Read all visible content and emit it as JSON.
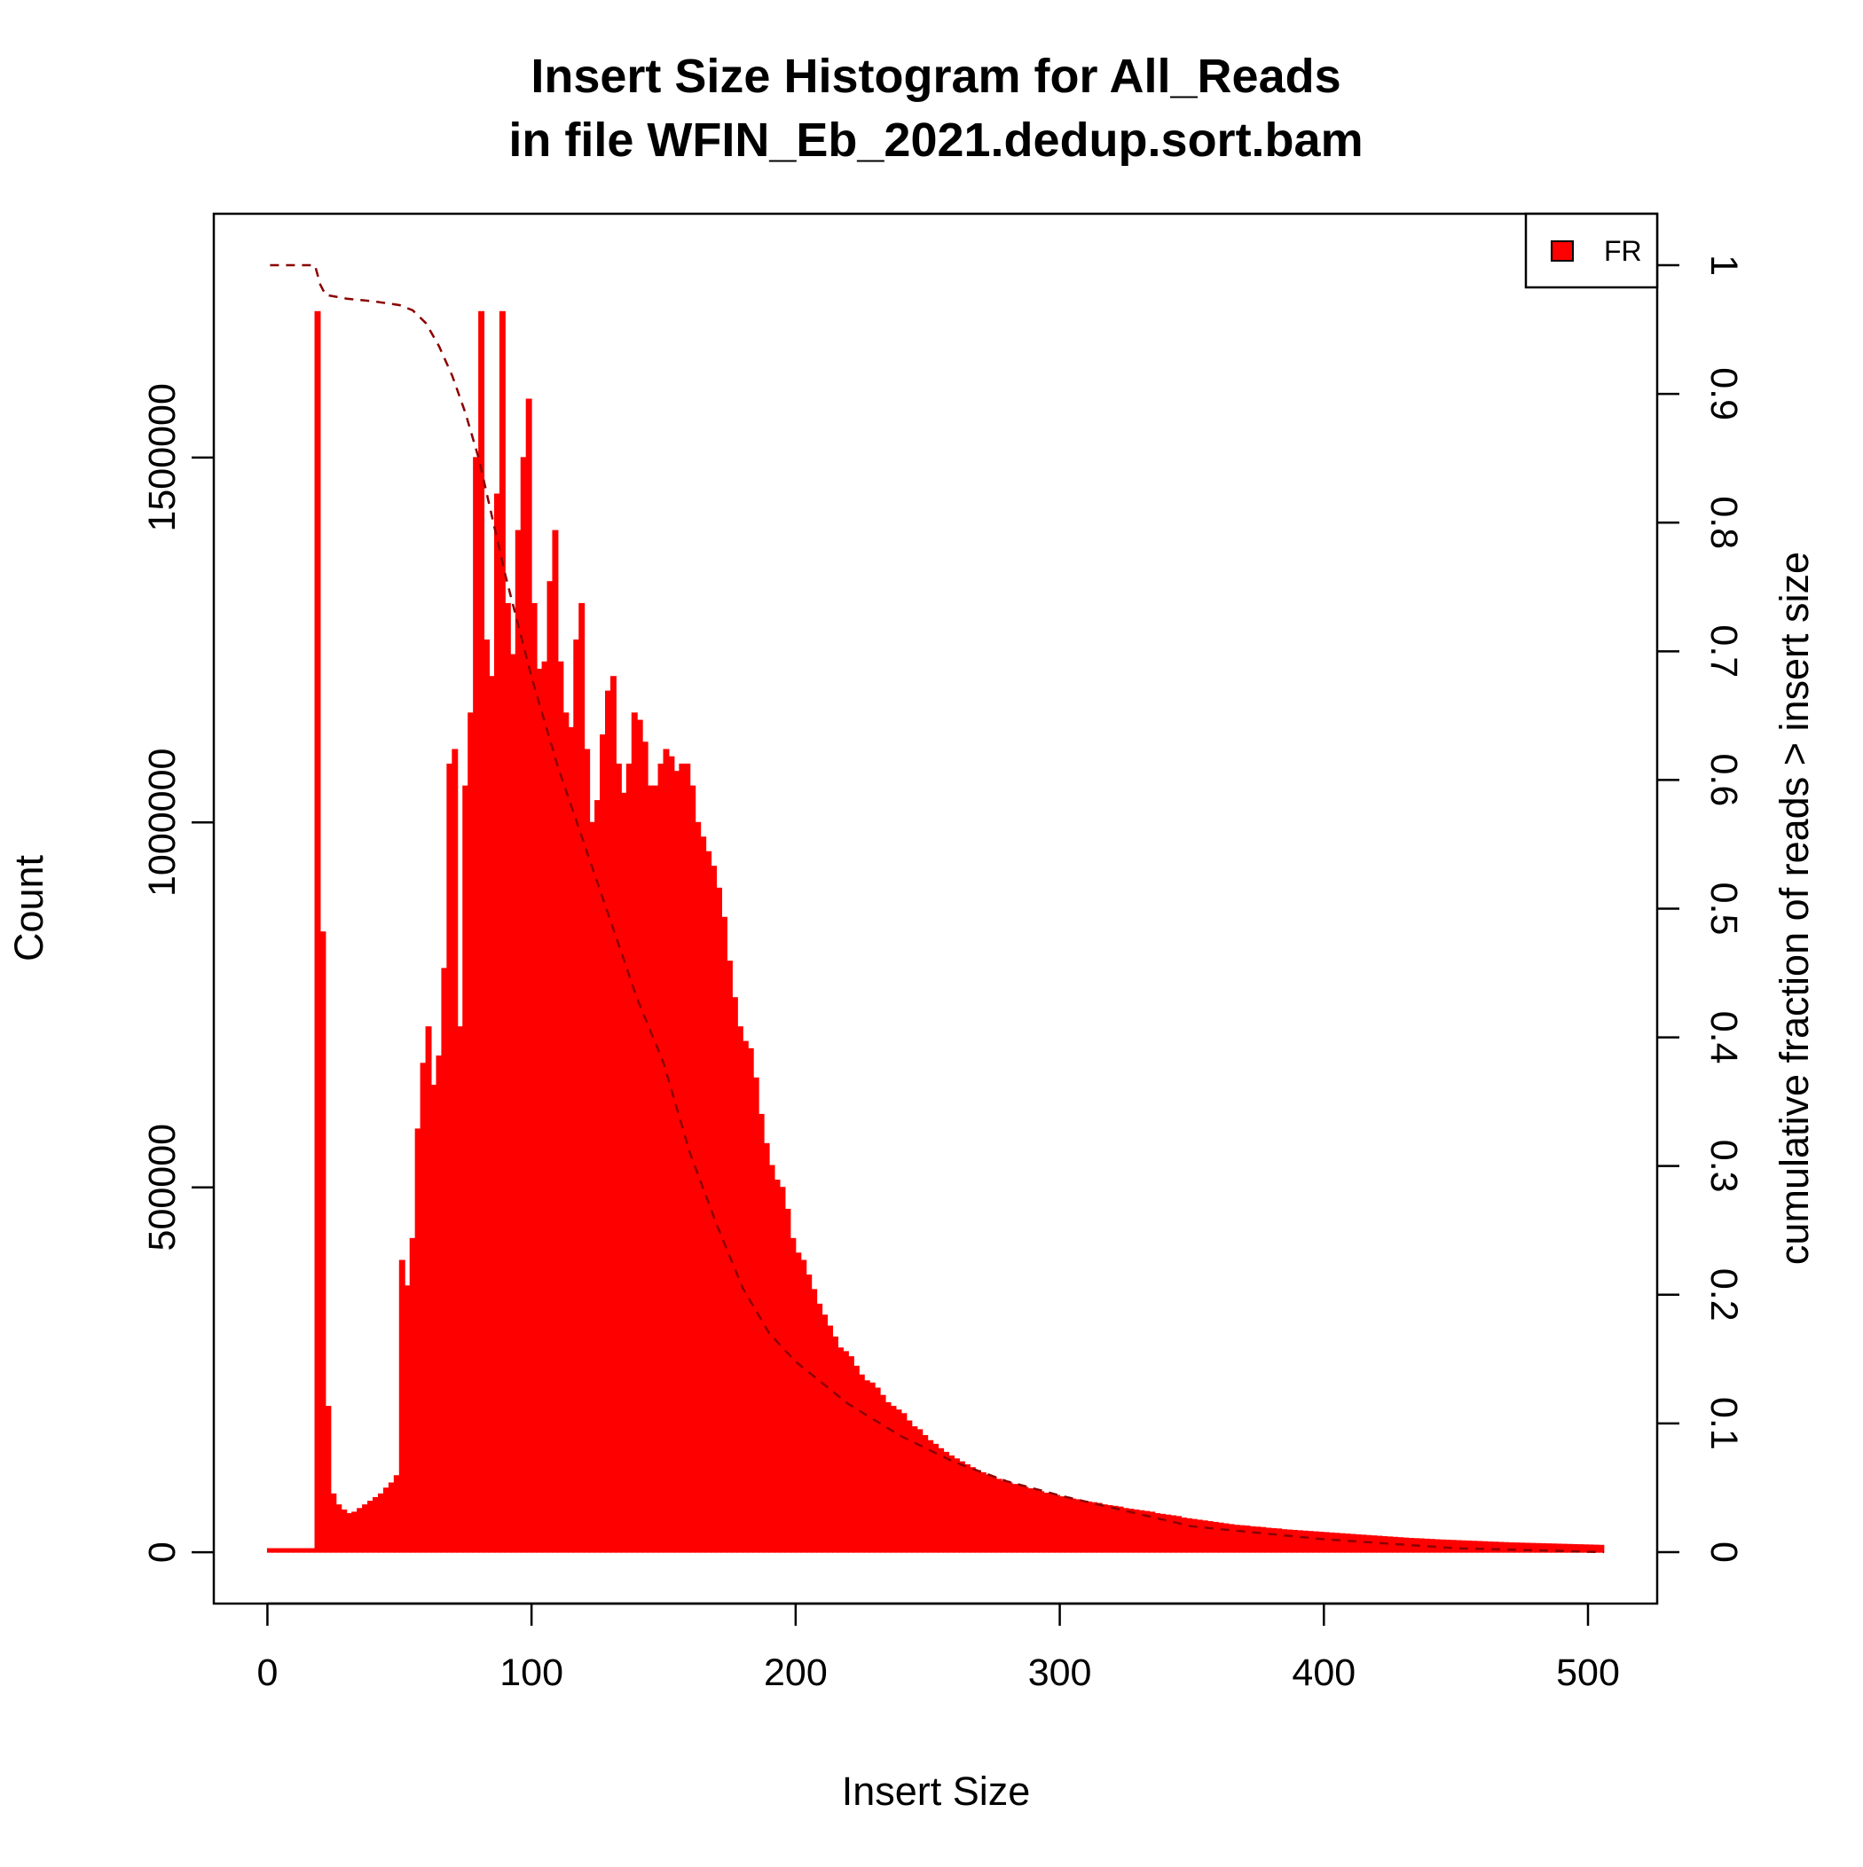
{
  "chart_data": {
    "type": "histogram",
    "title": [
      "Insert Size Histogram for All_Reads",
      "in file WFIN_Eb_2021.dedup.sort.bam"
    ],
    "xlabel": "Insert Size",
    "ylabel": "Count",
    "y2label": "cumulative fraction of reads > insert size",
    "bins": [
      0,
      2,
      4,
      6,
      8,
      10,
      12,
      14,
      16,
      18,
      20,
      22,
      24,
      26,
      28,
      30,
      32,
      34,
      36,
      38,
      40,
      42,
      44,
      46,
      48,
      50,
      52,
      54,
      56,
      58,
      60,
      62,
      64,
      66,
      68,
      70,
      72,
      74,
      76,
      78,
      80,
      82,
      84,
      86,
      88,
      90,
      92,
      94,
      96,
      98,
      100,
      102,
      104,
      106,
      108,
      110,
      112,
      114,
      116,
      118,
      120,
      122,
      124,
      126,
      128,
      130,
      132,
      134,
      136,
      138,
      140,
      142,
      144,
      146,
      148,
      150,
      152,
      154,
      156,
      158,
      160,
      162,
      164,
      166,
      168,
      170,
      172,
      174,
      176,
      178,
      180,
      182,
      184,
      186,
      188,
      190,
      192,
      194,
      196,
      198,
      200,
      202,
      204,
      206,
      208,
      210,
      212,
      214,
      216,
      218,
      220,
      222,
      224,
      226,
      228,
      230,
      232,
      234,
      236,
      238,
      240,
      242,
      244,
      246,
      248,
      250,
      252,
      254,
      256,
      258,
      260,
      262,
      264,
      266,
      268,
      270,
      272,
      274,
      276,
      278,
      280,
      282,
      284,
      286,
      288,
      290,
      292,
      294,
      296,
      298,
      300,
      302,
      304,
      306,
      308,
      310,
      312,
      314,
      316,
      318,
      320,
      322,
      324,
      326,
      328,
      330,
      332,
      334,
      336,
      338,
      340,
      342,
      344,
      346,
      348,
      350,
      352,
      354,
      356,
      358,
      360,
      362,
      364,
      366,
      368,
      370,
      372,
      374,
      376,
      378,
      380,
      382,
      384,
      386,
      388,
      390,
      392,
      394,
      396,
      398,
      400,
      402,
      404,
      406,
      408,
      410,
      412,
      414,
      416,
      418,
      420,
      422,
      424,
      426,
      428,
      430,
      432,
      434,
      436,
      438,
      440,
      442,
      444,
      446,
      448,
      450,
      452,
      454,
      456,
      458,
      460,
      462,
      464,
      466,
      468,
      470,
      472,
      474,
      476,
      478,
      480,
      482,
      484,
      486,
      488,
      490,
      492,
      494,
      496,
      498,
      500,
      502,
      504,
      506
    ],
    "series": [
      {
        "name": "FR",
        "color": "#ff0000",
        "values": [
          5000,
          5000,
          5000,
          5000,
          5000,
          5000,
          5000,
          5000,
          5000,
          1700000,
          850000,
          200000,
          80000,
          65000,
          58000,
          53000,
          55000,
          60000,
          65000,
          70000,
          75000,
          80000,
          88000,
          95000,
          105000,
          400000,
          365000,
          430000,
          580000,
          670000,
          720000,
          640000,
          680000,
          800000,
          1080000,
          1100000,
          720000,
          1050000,
          1150000,
          1500000,
          1700000,
          1250000,
          1200000,
          1450000,
          1700000,
          1300000,
          1230000,
          1400000,
          1500000,
          1580000,
          1300000,
          1210000,
          1220000,
          1330000,
          1400000,
          1220000,
          1150000,
          1130000,
          1250000,
          1300000,
          1100000,
          1000000,
          1030000,
          1120000,
          1180000,
          1200000,
          1080000,
          1040000,
          1080000,
          1150000,
          1140000,
          1110000,
          1050000,
          1050000,
          1080000,
          1100000,
          1090000,
          1070000,
          1080000,
          1080000,
          1050000,
          1000000,
          980000,
          960000,
          940000,
          910000,
          870000,
          810000,
          760000,
          720000,
          700000,
          690000,
          650000,
          600000,
          560000,
          530000,
          510000,
          500000,
          470000,
          430000,
          410000,
          400000,
          380000,
          360000,
          340000,
          325000,
          310000,
          295000,
          280000,
          275000,
          268000,
          255000,
          243000,
          235000,
          232000,
          225000,
          215000,
          205000,
          200000,
          195000,
          190000,
          180000,
          172000,
          168000,
          160000,
          153000,
          148000,
          142000,
          137000,
          132000,
          128000,
          124000,
          120000,
          116000,
          112000,
          109000,
          106000,
          103000,
          100000,
          97000,
          95000,
          93000,
          91000,
          89000,
          87000,
          85000,
          83000,
          81000,
          80000,
          78000,
          76000,
          74000,
          73000,
          72000,
          70000,
          69000,
          68000,
          67000,
          65000,
          64000,
          63000,
          62000,
          60000,
          59000,
          58000,
          57000,
          56000,
          55000,
          53000,
          52000,
          51000,
          50000,
          49000,
          47000,
          46000,
          45000,
          44000,
          43000,
          42000,
          41000,
          40000,
          39000,
          38000,
          37000,
          36500,
          36000,
          35000,
          34500,
          34000,
          33000,
          32500,
          32000,
          31000,
          30500,
          30000,
          29500,
          29000,
          28500,
          28000,
          27500,
          27000,
          26500,
          26000,
          25500,
          25000,
          24500,
          24000,
          23500,
          23000,
          22500,
          22000,
          21500,
          21000,
          20500,
          20000,
          19500,
          19000,
          18700,
          18400,
          18000,
          17600,
          17200,
          16900,
          16600,
          16300,
          16000,
          15700,
          15400,
          15100,
          14800,
          14500,
          14200,
          13900,
          13600,
          13300,
          13000,
          12800,
          12600,
          12400,
          12200,
          12000,
          11800,
          11600,
          11400,
          11200,
          11000,
          10800,
          10600,
          10400,
          10200,
          10000,
          9800,
          9600
        ]
      },
      {
        "type": "line",
        "axis": "y2",
        "color": "#8b0000",
        "dashed": true,
        "x": [
          1,
          18,
          20,
          22,
          30,
          40,
          50,
          55,
          60,
          65,
          70,
          75,
          80,
          85,
          90,
          100,
          110,
          120,
          130,
          140,
          150,
          160,
          170,
          180,
          190,
          200,
          220,
          240,
          260,
          280,
          300,
          350,
          400,
          450,
          506
        ],
        "values": [
          1,
          1,
          0.985,
          0.977,
          0.974,
          0.972,
          0.969,
          0.965,
          0.955,
          0.937,
          0.914,
          0.885,
          0.85,
          0.805,
          0.76,
          0.68,
          0.61,
          0.55,
          0.49,
          0.43,
          0.38,
          0.31,
          0.255,
          0.205,
          0.17,
          0.148,
          0.115,
          0.09,
          0.07,
          0.055,
          0.044,
          0.02,
          0.01,
          0.003,
          0
        ]
      }
    ],
    "xlim": [
      -20.3,
      526.2
    ],
    "ylim": [
      -70300,
      1834000
    ],
    "y2lim": [
      -0.04,
      1.04
    ],
    "xticks": [
      0,
      100,
      200,
      300,
      400,
      500
    ],
    "yticks": [
      0,
      500000,
      1000000,
      1500000
    ],
    "y2ticks": [
      0,
      0.1,
      0.2,
      0.3,
      0.4,
      0.5,
      0.6,
      0.7,
      0.8,
      0.9,
      1
    ],
    "legend": "topright"
  }
}
